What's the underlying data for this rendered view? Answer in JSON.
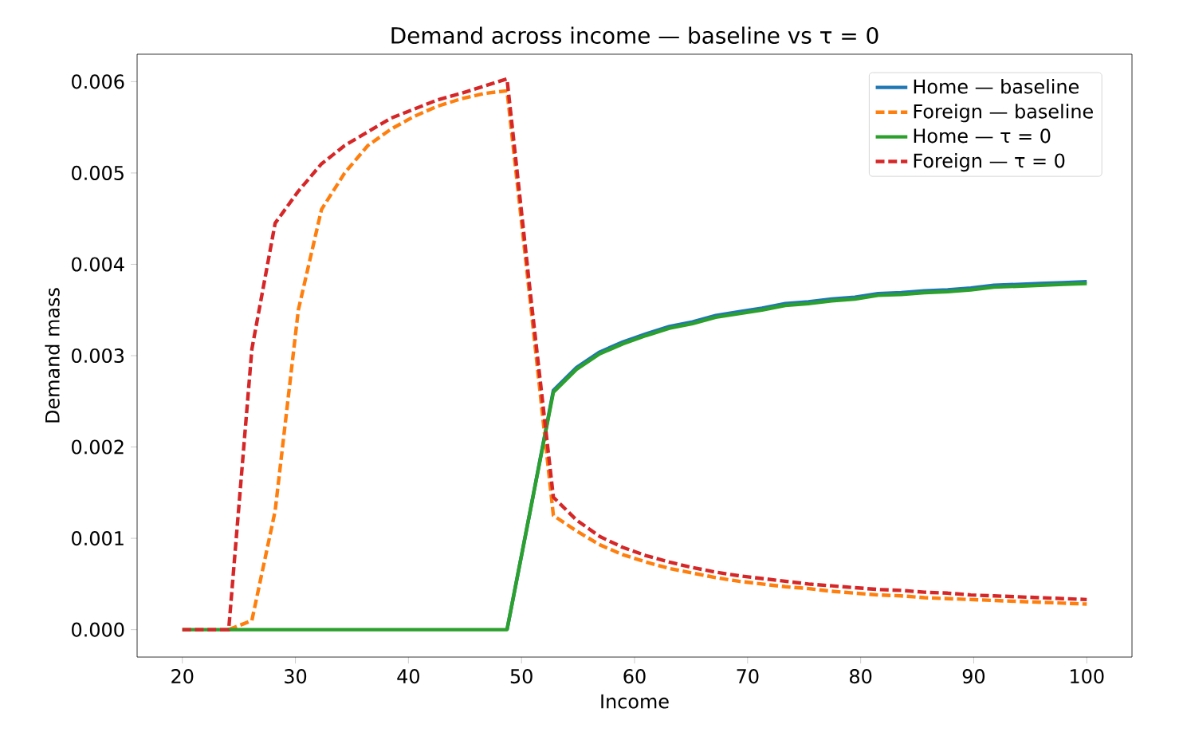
{
  "chart_data": {
    "type": "line",
    "title": "Demand across income — baseline vs τ = 0",
    "xlabel": "Income",
    "ylabel": "Demand mass",
    "x": [
      20,
      22.05,
      24.1,
      26.15,
      28.21,
      30.26,
      32.31,
      34.36,
      36.41,
      38.46,
      40.51,
      42.56,
      44.62,
      46.67,
      48.72,
      50.77,
      52.82,
      54.87,
      56.92,
      58.97,
      61.03,
      63.08,
      65.13,
      67.18,
      69.23,
      71.28,
      73.33,
      75.38,
      77.44,
      79.49,
      81.54,
      83.59,
      85.64,
      87.69,
      89.74,
      91.79,
      93.85,
      95.9,
      97.95,
      100
    ],
    "series": [
      {
        "name": "Home — baseline",
        "color": "#1f77b4",
        "line_style": "solid",
        "values": [
          null,
          null,
          null,
          null,
          null,
          null,
          null,
          null,
          null,
          null,
          null,
          null,
          null,
          null,
          0,
          0.0013,
          0.00262,
          0.00287,
          0.00304,
          0.00315,
          0.00324,
          0.00332,
          0.00337,
          0.00344,
          0.00348,
          0.00352,
          0.00357,
          0.00359,
          0.00362,
          0.00364,
          0.00368,
          0.00369,
          0.00371,
          0.00372,
          0.00374,
          0.00377,
          0.00378,
          0.00379,
          0.0038,
          0.00381
        ]
      },
      {
        "name": "Foreign — baseline",
        "color": "#ff7f0e",
        "line_style": "dashed",
        "values": [
          null,
          null,
          0,
          0.0001,
          0.0013,
          0.0035,
          0.0046,
          0.005,
          0.0053,
          0.00548,
          0.00562,
          0.00573,
          0.00581,
          0.00587,
          0.0059,
          0.0036,
          0.00125,
          0.00108,
          0.00093,
          0.00082,
          0.00074,
          0.00067,
          0.00062,
          0.00057,
          0.00053,
          0.0005,
          0.00047,
          0.00045,
          0.00042,
          0.0004,
          0.00038,
          0.00037,
          0.00035,
          0.00034,
          0.00033,
          0.00032,
          0.00031,
          0.0003,
          0.00029,
          0.00028
        ]
      },
      {
        "name": "Home — τ = 0",
        "color": "#2ca02c",
        "line_style": "solid",
        "values": [
          0,
          0,
          0,
          0,
          0,
          0,
          0,
          0,
          0,
          0,
          0,
          0,
          0,
          0,
          0,
          0.0013,
          0.0026,
          0.00285,
          0.00302,
          0.00313,
          0.00322,
          0.0033,
          0.00335,
          0.00342,
          0.00346,
          0.0035,
          0.00355,
          0.00357,
          0.0036,
          0.00362,
          0.00366,
          0.00367,
          0.00369,
          0.0037,
          0.00372,
          0.00375,
          0.00376,
          0.00377,
          0.00378,
          0.00379
        ]
      },
      {
        "name": "Foreign — τ = 0",
        "color": "#d62728",
        "line_style": "dashed",
        "values": [
          0,
          0,
          0,
          0.00307,
          0.00445,
          0.0048,
          0.0051,
          0.0053,
          0.00545,
          0.0056,
          0.0057,
          0.0058,
          0.00587,
          0.00595,
          0.00603,
          0.0037,
          0.00145,
          0.0012,
          0.00102,
          0.0009,
          0.00081,
          0.00074,
          0.00068,
          0.00063,
          0.00059,
          0.00056,
          0.00053,
          0.0005,
          0.00048,
          0.00046,
          0.00044,
          0.00043,
          0.00041,
          0.0004,
          0.00038,
          0.00037,
          0.00036,
          0.00035,
          0.00034,
          0.00033
        ]
      }
    ],
    "xlim": [
      16,
      104
    ],
    "ylim": [
      -0.0003,
      0.0063
    ],
    "xticks": [
      20,
      30,
      40,
      50,
      60,
      70,
      80,
      90,
      100
    ],
    "yticks": [
      {
        "value": 0,
        "label": "0.000"
      },
      {
        "value": 0.001,
        "label": "0.001"
      },
      {
        "value": 0.002,
        "label": "0.002"
      },
      {
        "value": 0.003,
        "label": "0.003"
      },
      {
        "value": 0.004,
        "label": "0.004"
      },
      {
        "value": 0.005,
        "label": "0.005"
      },
      {
        "value": 0.006,
        "label": "0.006"
      }
    ],
    "legend": "top right",
    "grid": false
  }
}
